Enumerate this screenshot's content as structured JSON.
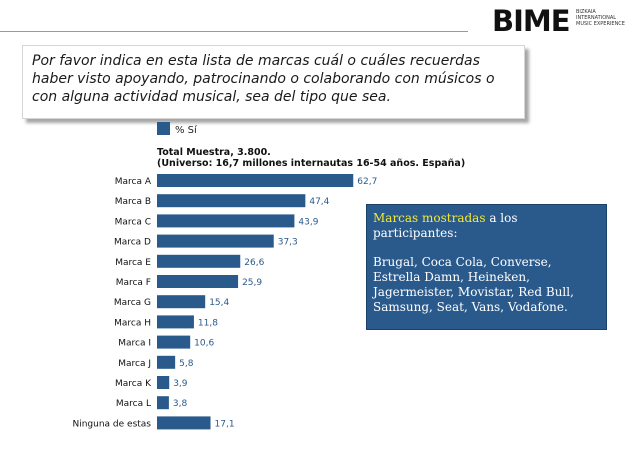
{
  "header": {
    "logo_text": "BIME",
    "logo_subtitle": [
      "BIZKAIA",
      "INTERNATIONAL",
      "MUSIC EXPERIENCE"
    ]
  },
  "question": "Por favor indica en esta lista de marcas cuál o cuáles recuerdas haber visto apoyando, patrocinando o colaborando con músicos o con alguna actividad musical, sea del tipo que sea.",
  "info_box": {
    "highlight": "Marcas mostradas",
    "text_after_highlight": " a los participantes:",
    "brands": "Brugal, Coca Cola, Converse, Estrella Damn, Heineken, Jagermeister, Movistar, Red Bull, Samsung, Seat, Vans, Vodafone."
  },
  "chart_data": {
    "type": "bar",
    "orientation": "horizontal",
    "legend": "% Sí",
    "subtitle": [
      "Total Muestra, 3.800.",
      "(Universo: 16,7 millones internautas 16-54 años. España)"
    ],
    "categories": [
      "Marca A",
      "Marca B",
      "Marca C",
      "Marca D",
      "Marca E",
      "Marca F",
      "Marca G",
      "Marca H",
      "Marca I",
      "Marca J",
      "Marca K",
      "Marca L",
      "Ninguna de estas"
    ],
    "values": [
      62.7,
      47.4,
      43.9,
      37.3,
      26.6,
      25.9,
      15.4,
      11.8,
      10.6,
      5.8,
      3.9,
      3.8,
      17.1
    ],
    "value_labels": [
      "62,7",
      "47,4",
      "43,9",
      "37,3",
      "26,6",
      "25,9",
      "15,4",
      "11,8",
      "10,6",
      "5,8",
      "3,9",
      "3,8",
      "17,1"
    ],
    "bar_color": "#2a5a8c",
    "grid": false
  }
}
